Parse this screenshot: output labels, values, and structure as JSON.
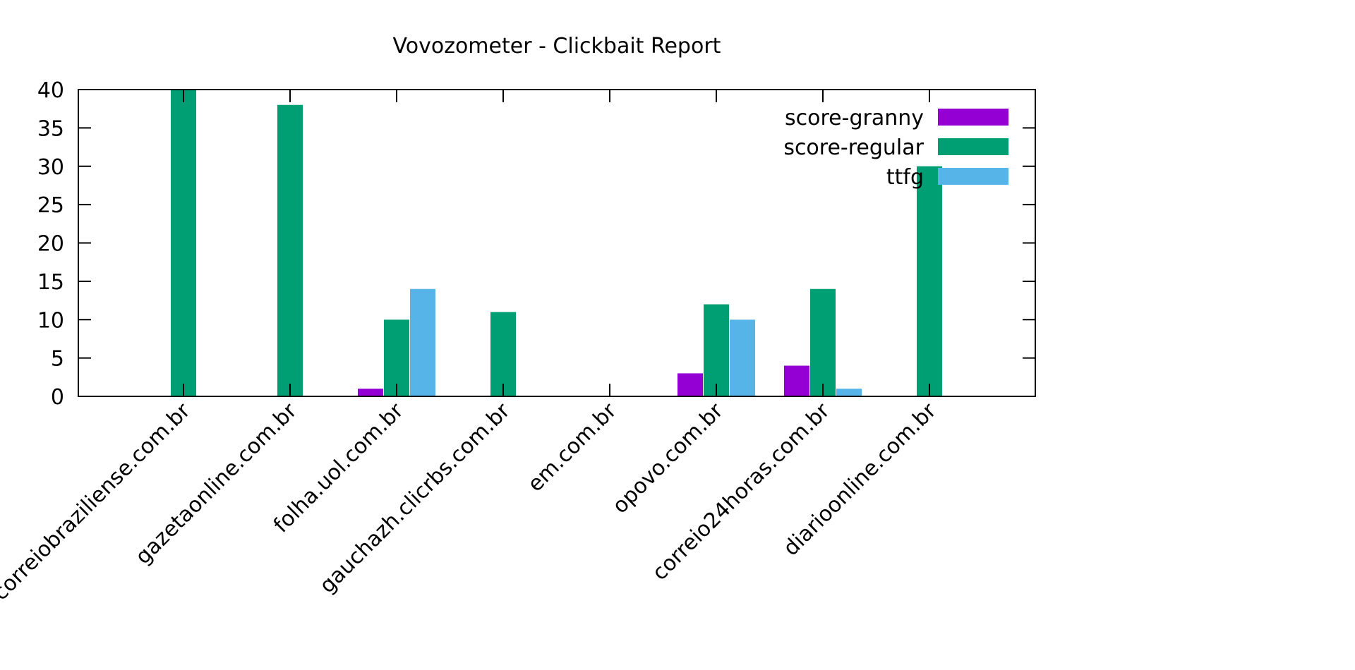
{
  "chart_data": {
    "type": "bar",
    "title": "Vovozometer - Clickbait Report",
    "xlabel": "",
    "ylabel": "",
    "ylim": [
      0,
      40
    ],
    "yticks": [
      0,
      5,
      10,
      15,
      20,
      25,
      30,
      35,
      40
    ],
    "grid": false,
    "legend_position": "top-right",
    "categories": [
      "correiobraziliense.com.br",
      "gazetaonline.com.br",
      "folha.uol.com.br",
      "gauchazh.clicrbs.com.br",
      "em.com.br",
      "opovo.com.br",
      "correio24horas.com.br",
      "diarioonline.com.br"
    ],
    "series": [
      {
        "name": "score-granny",
        "color": "#9400d3",
        "values": [
          0,
          0,
          1,
          0,
          0,
          3,
          4,
          0
        ]
      },
      {
        "name": "score-regular",
        "color": "#009e73",
        "values": [
          40,
          38,
          10,
          11,
          0,
          12,
          14,
          30
        ]
      },
      {
        "name": "ttfg",
        "color": "#56b4e9",
        "values": [
          0,
          0,
          14,
          0,
          0,
          10,
          1,
          0
        ]
      }
    ]
  }
}
